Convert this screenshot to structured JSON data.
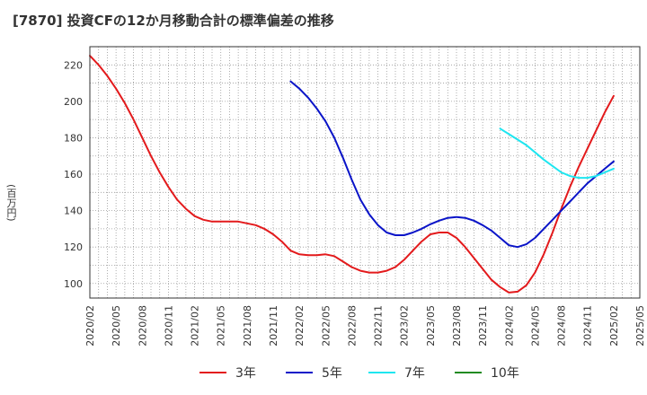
{
  "title": "[7870]  投資CFの12か月移動合計の標準偏差の推移",
  "y_unit": "(百万円)",
  "chart_data": {
    "type": "line",
    "title": "[7870]  投資CFの12か月移動合計の標準偏差の推移",
    "ylabel": "(百万円)",
    "xlabel": "",
    "ylim": [
      92,
      230
    ],
    "xlim": [
      "2020-02",
      "2025-05"
    ],
    "yticks": [
      100,
      120,
      140,
      160,
      180,
      200,
      220
    ],
    "xticks": [
      "2020/02",
      "2020/05",
      "2020/08",
      "2020/11",
      "2021/02",
      "2021/05",
      "2021/08",
      "2021/11",
      "2022/02",
      "2022/05",
      "2022/08",
      "2022/11",
      "2023/02",
      "2023/05",
      "2023/08",
      "2023/11",
      "2024/02",
      "2024/05",
      "2024/08",
      "2024/11",
      "2025/02",
      "2025/05"
    ],
    "grid": true,
    "legend_position": "bottom",
    "series": [
      {
        "name": "3年",
        "color": "#e31a1c",
        "points": [
          [
            "2020-02",
            225
          ],
          [
            "2020-03",
            220
          ],
          [
            "2020-04",
            214
          ],
          [
            "2020-05",
            207
          ],
          [
            "2020-06",
            199
          ],
          [
            "2020-07",
            190
          ],
          [
            "2020-08",
            180
          ],
          [
            "2020-09",
            170
          ],
          [
            "2020-10",
            161
          ],
          [
            "2020-11",
            153
          ],
          [
            "2020-12",
            146
          ],
          [
            "2021-01",
            141
          ],
          [
            "2021-02",
            137
          ],
          [
            "2021-03",
            135
          ],
          [
            "2021-04",
            134
          ],
          [
            "2021-05",
            134
          ],
          [
            "2021-06",
            134
          ],
          [
            "2021-07",
            134
          ],
          [
            "2021-08",
            133
          ],
          [
            "2021-09",
            132
          ],
          [
            "2021-10",
            130
          ],
          [
            "2021-11",
            127
          ],
          [
            "2021-12",
            123
          ],
          [
            "2022-01",
            118
          ],
          [
            "2022-02",
            116
          ],
          [
            "2022-03",
            115.5
          ],
          [
            "2022-04",
            115.5
          ],
          [
            "2022-05",
            116
          ],
          [
            "2022-06",
            115
          ],
          [
            "2022-07",
            112
          ],
          [
            "2022-08",
            109
          ],
          [
            "2022-09",
            107
          ],
          [
            "2022-10",
            106
          ],
          [
            "2022-11",
            106
          ],
          [
            "2022-12",
            107
          ],
          [
            "2023-01",
            109
          ],
          [
            "2023-02",
            113
          ],
          [
            "2023-03",
            118
          ],
          [
            "2023-04",
            123
          ],
          [
            "2023-05",
            127
          ],
          [
            "2023-06",
            128
          ],
          [
            "2023-07",
            128
          ],
          [
            "2023-08",
            125
          ],
          [
            "2023-09",
            120
          ],
          [
            "2023-10",
            114
          ],
          [
            "2023-11",
            108
          ],
          [
            "2023-12",
            102
          ],
          [
            "2024-01",
            98
          ],
          [
            "2024-02",
            95
          ],
          [
            "2024-03",
            95.5
          ],
          [
            "2024-04",
            99
          ],
          [
            "2024-05",
            106
          ],
          [
            "2024-06",
            116
          ],
          [
            "2024-07",
            128
          ],
          [
            "2024-08",
            141
          ],
          [
            "2024-09",
            153
          ],
          [
            "2024-10",
            164
          ],
          [
            "2024-11",
            174
          ],
          [
            "2024-12",
            184
          ],
          [
            "2025-01",
            194
          ],
          [
            "2025-02",
            203
          ]
        ]
      },
      {
        "name": "5年",
        "color": "#0a14c8",
        "points": [
          [
            "2022-01",
            211
          ],
          [
            "2022-02",
            207
          ],
          [
            "2022-03",
            202
          ],
          [
            "2022-04",
            196
          ],
          [
            "2022-05",
            189
          ],
          [
            "2022-06",
            180
          ],
          [
            "2022-07",
            169
          ],
          [
            "2022-08",
            157
          ],
          [
            "2022-09",
            146
          ],
          [
            "2022-10",
            138
          ],
          [
            "2022-11",
            132
          ],
          [
            "2022-12",
            128
          ],
          [
            "2023-01",
            126.5
          ],
          [
            "2023-02",
            126.5
          ],
          [
            "2023-03",
            128
          ],
          [
            "2023-04",
            130
          ],
          [
            "2023-05",
            132.5
          ],
          [
            "2023-06",
            134.5
          ],
          [
            "2023-07",
            136
          ],
          [
            "2023-08",
            136.5
          ],
          [
            "2023-09",
            136
          ],
          [
            "2023-10",
            134.5
          ],
          [
            "2023-11",
            132
          ],
          [
            "2023-12",
            129
          ],
          [
            "2024-01",
            125
          ],
          [
            "2024-02",
            121
          ],
          [
            "2024-03",
            120
          ],
          [
            "2024-04",
            121.5
          ],
          [
            "2024-05",
            125
          ],
          [
            "2024-06",
            130
          ],
          [
            "2024-07",
            135
          ],
          [
            "2024-08",
            140
          ],
          [
            "2024-09",
            145
          ],
          [
            "2024-10",
            150
          ],
          [
            "2024-11",
            155
          ],
          [
            "2024-12",
            159
          ],
          [
            "2025-01",
            163
          ],
          [
            "2025-02",
            167
          ]
        ]
      },
      {
        "name": "7年",
        "color": "#1ee6f0",
        "points": [
          [
            "2024-01",
            185
          ],
          [
            "2024-02",
            182
          ],
          [
            "2024-03",
            179
          ],
          [
            "2024-04",
            176
          ],
          [
            "2024-05",
            172
          ],
          [
            "2024-06",
            168
          ],
          [
            "2024-07",
            164.5
          ],
          [
            "2024-08",
            161
          ],
          [
            "2024-09",
            159
          ],
          [
            "2024-10",
            158
          ],
          [
            "2024-11",
            158
          ],
          [
            "2024-12",
            159
          ],
          [
            "2025-01",
            161
          ],
          [
            "2025-02",
            163
          ]
        ]
      },
      {
        "name": "10年",
        "color": "#228b22",
        "points": []
      }
    ]
  }
}
